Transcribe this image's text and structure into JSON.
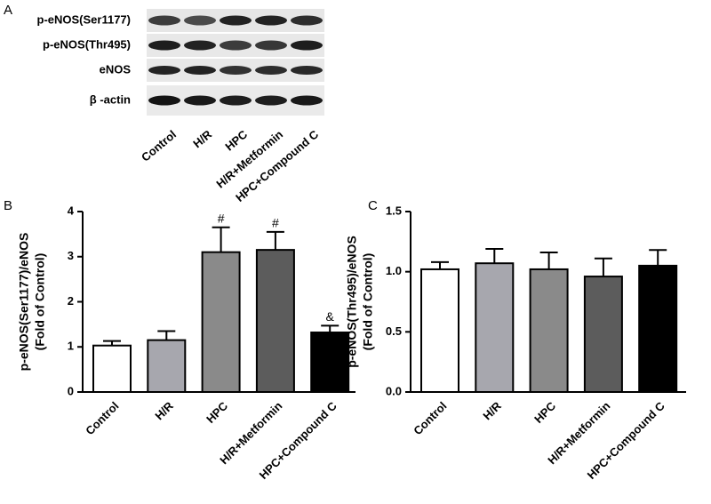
{
  "panels": [
    "A",
    "B",
    "C"
  ],
  "blot": {
    "rows": [
      "p-eNOS(Ser1177)",
      "p-eNOS(Thr495)",
      "eNOS",
      "β -actin"
    ],
    "lanes": [
      "Control",
      "H/R",
      "HPC",
      "H/R+Metformin",
      "HPC+Compound C"
    ]
  },
  "chart_data": [
    {
      "type": "bar",
      "ylabel": [
        "p-eNOS(Ser1177)/eNOS",
        "(Fold of Control)"
      ],
      "categories": [
        "Control",
        "H/R",
        "HPC",
        "H/R+Metformin",
        "HPC+Compound C"
      ],
      "values": [
        1.03,
        1.15,
        3.1,
        3.15,
        1.32
      ],
      "errors": [
        0.1,
        0.2,
        0.55,
        0.4,
        0.15
      ],
      "annotations": [
        null,
        null,
        "#",
        "#",
        "&"
      ],
      "colors": [
        "#ffffff",
        "#a7a7ae",
        "#8a8a8a",
        "#5c5c5c",
        "#000000"
      ],
      "ylim": [
        0,
        4
      ],
      "yticks": [
        0,
        1,
        2,
        3,
        4
      ]
    },
    {
      "type": "bar",
      "ylabel": [
        "p-eNOS(Thr495)/eNOS",
        "(Fold of Control)"
      ],
      "categories": [
        "Control",
        "H/R",
        "HPC",
        "H/R+Metformin",
        "HPC+Compound C"
      ],
      "values": [
        1.02,
        1.07,
        1.02,
        0.96,
        1.05
      ],
      "errors": [
        0.06,
        0.12,
        0.14,
        0.15,
        0.13
      ],
      "colors": [
        "#ffffff",
        "#a7a7ae",
        "#8a8a8a",
        "#5c5c5c",
        "#000000"
      ],
      "ylim": [
        0,
        1.5
      ],
      "yticks": [
        {
          "value": 0,
          "label": "0.0"
        },
        0.5,
        {
          "value": 1,
          "label": "1.0"
        },
        1.5
      ]
    }
  ]
}
